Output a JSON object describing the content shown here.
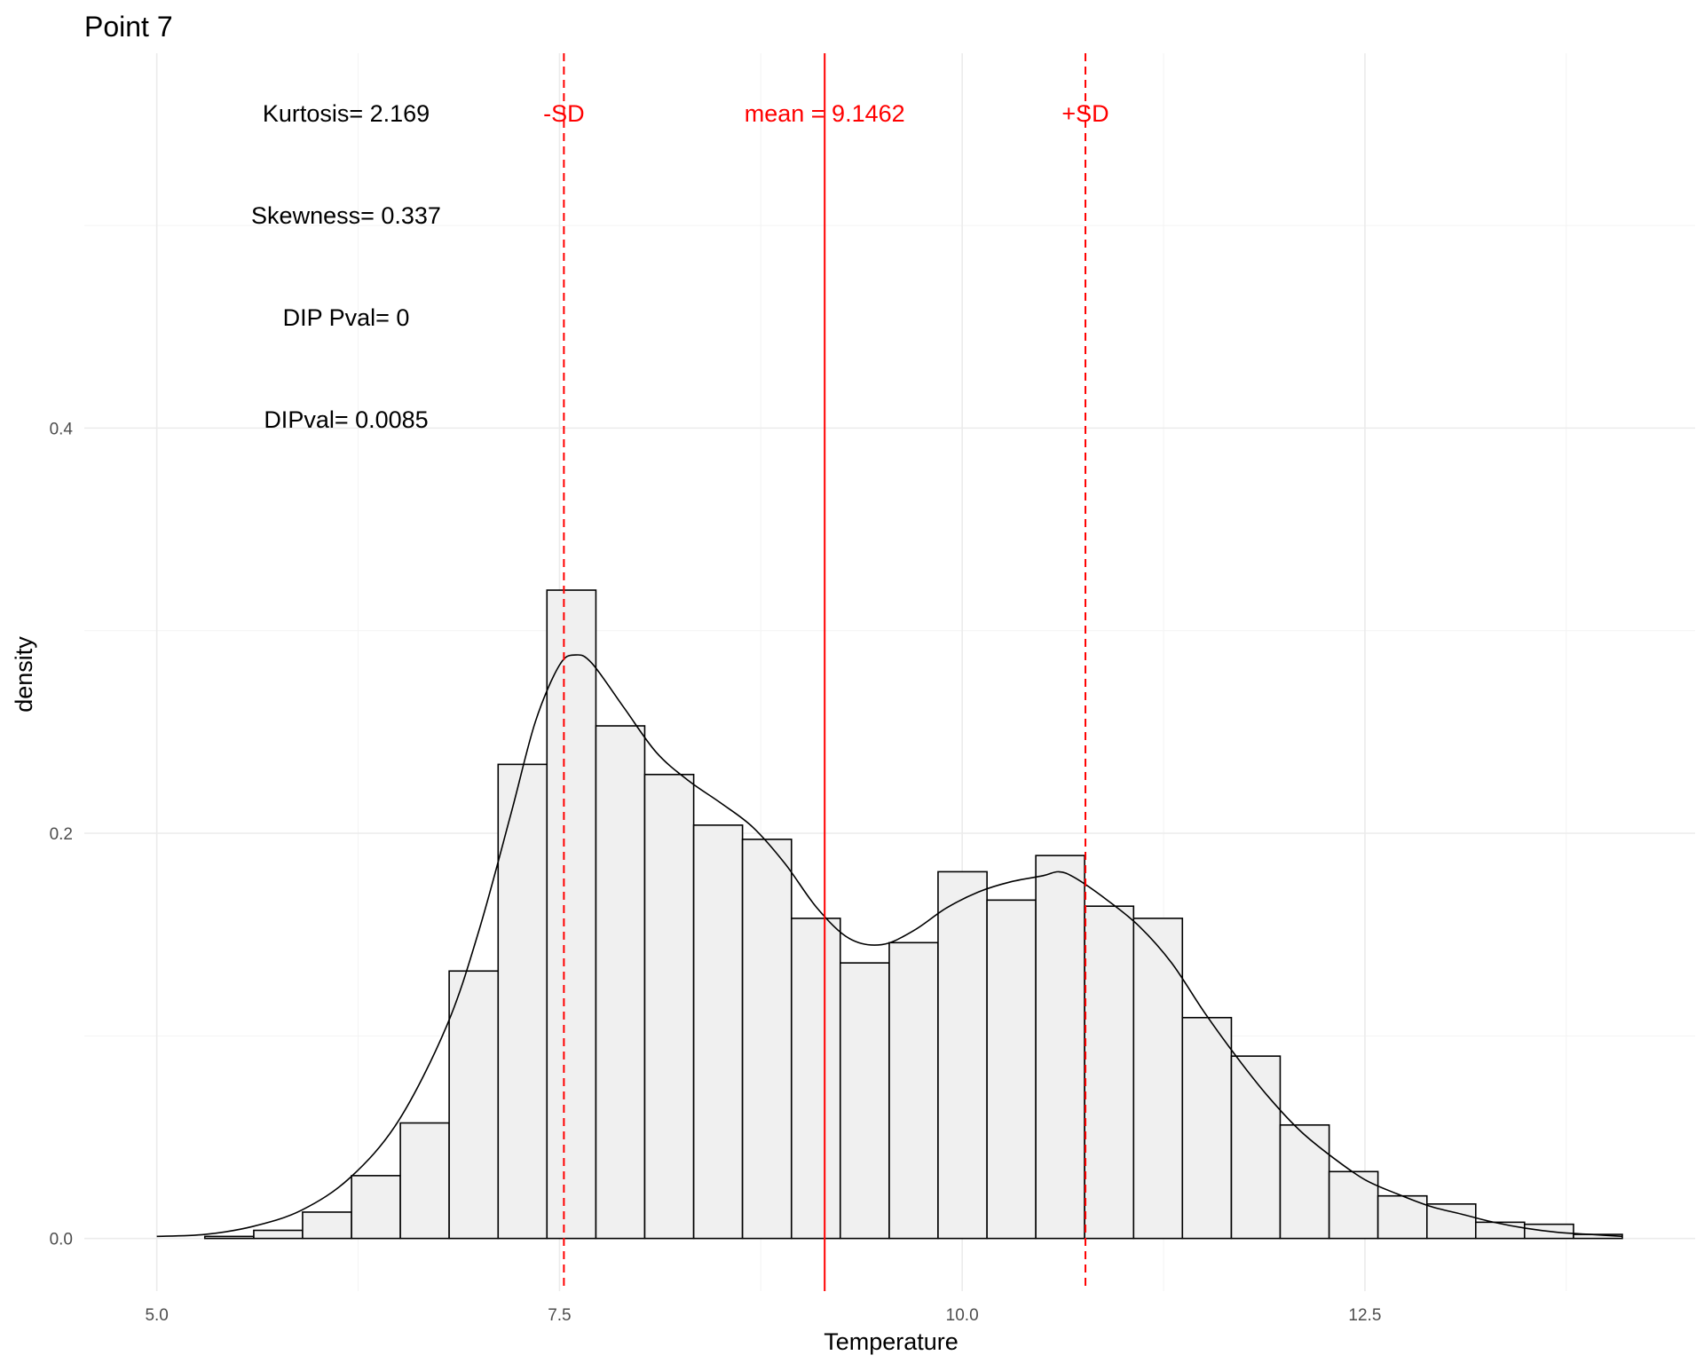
{
  "chart_data": {
    "type": "bar",
    "title": "Point 7",
    "xlabel": "Temperature",
    "ylabel": "density",
    "xlim": [
      4.55,
      14.55
    ],
    "ylim": [
      -0.026,
      0.585
    ],
    "x_ticks": [
      5.0,
      7.5,
      10.0,
      12.5
    ],
    "x_tick_labels": [
      "5.0",
      "7.5",
      "10.0",
      "12.5"
    ],
    "y_ticks": [
      0.0,
      0.2,
      0.4
    ],
    "y_tick_labels": [
      "0.0",
      "0.2",
      "0.4"
    ],
    "grid": true,
    "legend": "none",
    "histogram": {
      "bin_width": 0.3034,
      "bins": [
        {
          "x0": 4.995,
          "x1": 5.298,
          "density": 0.0
        },
        {
          "x0": 5.298,
          "x1": 5.602,
          "density": 0.001
        },
        {
          "x0": 5.602,
          "x1": 5.905,
          "density": 0.004
        },
        {
          "x0": 5.905,
          "x1": 6.209,
          "density": 0.013
        },
        {
          "x0": 6.209,
          "x1": 6.512,
          "density": 0.031
        },
        {
          "x0": 6.512,
          "x1": 6.815,
          "density": 0.057
        },
        {
          "x0": 6.815,
          "x1": 7.119,
          "density": 0.132
        },
        {
          "x0": 7.119,
          "x1": 7.422,
          "density": 0.234
        },
        {
          "x0": 7.422,
          "x1": 7.726,
          "density": 0.32
        },
        {
          "x0": 7.726,
          "x1": 8.029,
          "density": 0.253
        },
        {
          "x0": 8.029,
          "x1": 8.333,
          "density": 0.229
        },
        {
          "x0": 8.333,
          "x1": 8.636,
          "density": 0.204
        },
        {
          "x0": 8.636,
          "x1": 8.94,
          "density": 0.197
        },
        {
          "x0": 8.94,
          "x1": 9.243,
          "density": 0.158
        },
        {
          "x0": 9.243,
          "x1": 9.547,
          "density": 0.136
        },
        {
          "x0": 9.547,
          "x1": 9.85,
          "density": 0.146
        },
        {
          "x0": 9.85,
          "x1": 10.154,
          "density": 0.181
        },
        {
          "x0": 10.154,
          "x1": 10.457,
          "density": 0.167
        },
        {
          "x0": 10.457,
          "x1": 10.76,
          "density": 0.189
        },
        {
          "x0": 10.76,
          "x1": 11.064,
          "density": 0.164
        },
        {
          "x0": 11.064,
          "x1": 11.367,
          "density": 0.158
        },
        {
          "x0": 11.367,
          "x1": 11.671,
          "density": 0.109
        },
        {
          "x0": 11.671,
          "x1": 11.974,
          "density": 0.09
        },
        {
          "x0": 11.974,
          "x1": 12.278,
          "density": 0.056
        },
        {
          "x0": 12.278,
          "x1": 12.581,
          "density": 0.033
        },
        {
          "x0": 12.581,
          "x1": 12.885,
          "density": 0.021
        },
        {
          "x0": 12.885,
          "x1": 13.188,
          "density": 0.017
        },
        {
          "x0": 13.188,
          "x1": 13.491,
          "density": 0.008
        },
        {
          "x0": 13.491,
          "x1": 13.795,
          "density": 0.007
        },
        {
          "x0": 13.795,
          "x1": 14.098,
          "density": 0.002
        }
      ]
    },
    "density_curve": {
      "x": [
        5.0,
        5.3,
        5.6,
        5.9,
        6.2,
        6.5,
        6.8,
        7.0,
        7.2,
        7.35,
        7.5,
        7.6,
        7.7,
        7.9,
        8.1,
        8.3,
        8.5,
        8.7,
        8.9,
        9.1,
        9.3,
        9.5,
        9.7,
        9.9,
        10.1,
        10.3,
        10.5,
        10.6,
        10.7,
        10.9,
        11.1,
        11.3,
        11.5,
        11.7,
        11.9,
        12.1,
        12.3,
        12.5,
        12.7,
        12.9,
        13.1,
        13.3,
        13.5,
        13.7,
        13.9,
        14.1
      ],
      "y": [
        0.001,
        0.002,
        0.006,
        0.014,
        0.03,
        0.058,
        0.105,
        0.152,
        0.21,
        0.255,
        0.283,
        0.288,
        0.284,
        0.262,
        0.24,
        0.226,
        0.215,
        0.203,
        0.185,
        0.163,
        0.148,
        0.145,
        0.152,
        0.163,
        0.171,
        0.176,
        0.179,
        0.181,
        0.178,
        0.167,
        0.154,
        0.136,
        0.112,
        0.09,
        0.07,
        0.053,
        0.04,
        0.029,
        0.022,
        0.016,
        0.012,
        0.008,
        0.005,
        0.003,
        0.002,
        0.001
      ]
    },
    "reference_lines": [
      {
        "x": 7.5273,
        "label": "-SD",
        "style": "dashed",
        "color": "#ff0000"
      },
      {
        "x": 9.1462,
        "label": "mean = 9.1462",
        "style": "solid",
        "color": "#ff0000"
      },
      {
        "x": 10.7651,
        "label": "+SD",
        "style": "dashed",
        "color": "#ff0000"
      }
    ],
    "annotations": [
      "Kurtosis= 2.169",
      "Skewness= 0.337",
      "DIP Pval= 0",
      "DIPval= 0.0085"
    ],
    "bar_fill": "#f0f0f0",
    "bar_outline": "#000000"
  }
}
